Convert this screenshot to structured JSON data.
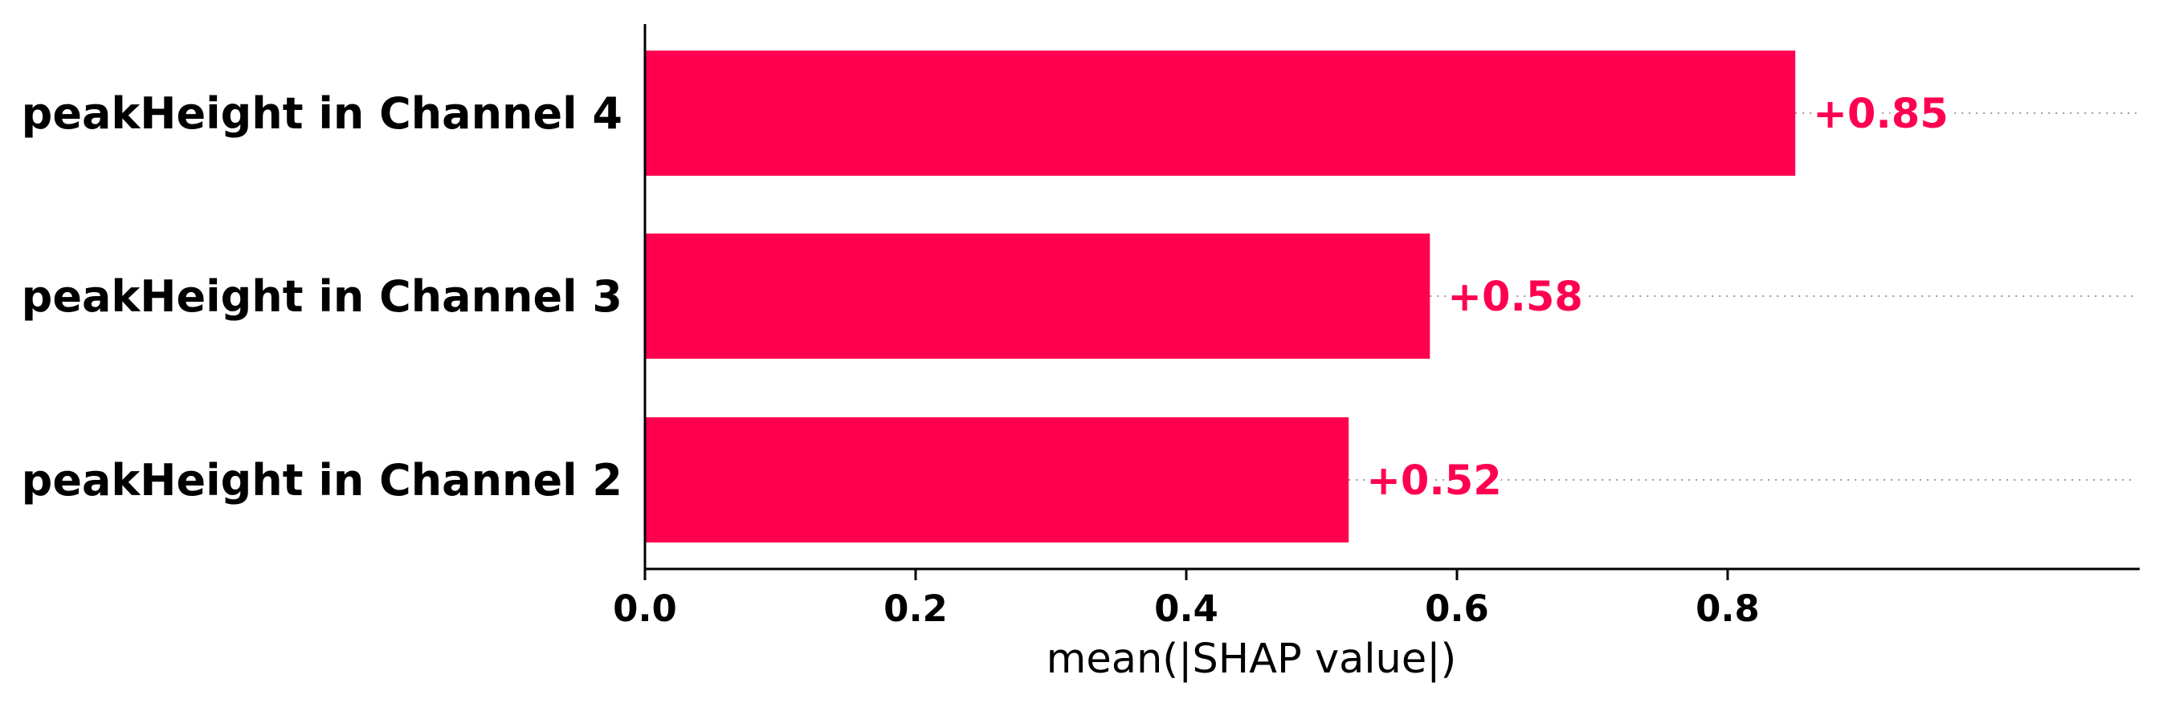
{
  "chart_data": {
    "type": "bar",
    "orientation": "horizontal",
    "categories": [
      "peakHeight in Channel 4",
      "peakHeight in Channel 3",
      "peakHeight in Channel 2"
    ],
    "values": [
      0.85,
      0.58,
      0.52
    ],
    "value_labels": [
      "+0.85",
      "+0.58",
      "+0.52"
    ],
    "xlabel": "mean(|SHAP value|)",
    "xlim": [
      0,
      0.94
    ],
    "xticks": [
      0.0,
      0.2,
      0.4,
      0.6,
      0.8
    ],
    "xtick_labels": [
      "0.0",
      "0.2",
      "0.4",
      "0.6",
      "0.8"
    ],
    "bar_color": "#ff0051",
    "grid": false,
    "value_guides": "dotted"
  }
}
